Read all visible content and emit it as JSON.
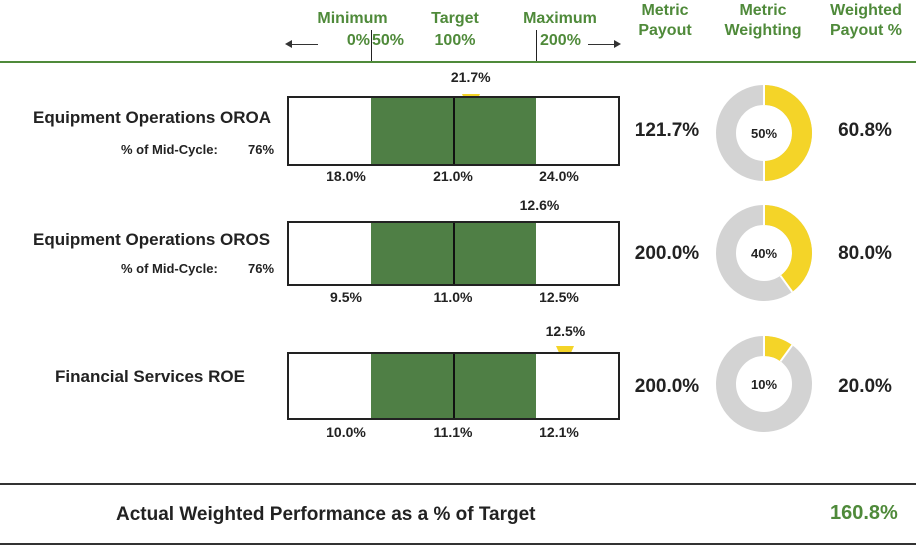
{
  "header": {
    "minimum": "Minimum",
    "min_pct": "0%",
    "fifty_pct": "50%",
    "target": "Target",
    "target_pct": "100%",
    "maximum": "Maximum",
    "max_pct": "200%",
    "metric_payout": [
      "Metric",
      "Payout"
    ],
    "metric_weighting": [
      "Metric",
      "Weighting"
    ],
    "weighted_payout": [
      "Weighted",
      "Payout %"
    ]
  },
  "colors": {
    "accent": "#4f8a3a",
    "band": "#4f7f45",
    "marker": "#f4d428",
    "donut_gray": "#d3d3d3"
  },
  "chart_data": {
    "type": "bar",
    "metrics": [
      {
        "name": "Equipment Operations OROA",
        "midcycle_label": "% of Mid-Cycle:",
        "midcycle_value": "76%",
        "scale": {
          "min": 18.0,
          "target": 21.0,
          "max": 24.0
        },
        "scale_labels": [
          "18.0%",
          "21.0%",
          "24.0%"
        ],
        "actual": 21.7,
        "actual_label": "21.7%",
        "metric_payout": "121.7%",
        "weighting": 50,
        "weighting_label": "50%",
        "weighted_payout": "60.8%"
      },
      {
        "name": "Equipment Operations OROS",
        "midcycle_label": "% of Mid-Cycle:",
        "midcycle_value": "76%",
        "scale": {
          "min": 9.5,
          "target": 11.0,
          "max": 12.5
        },
        "scale_labels": [
          "9.5%",
          "11.0%",
          "12.5%"
        ],
        "actual": 12.6,
        "actual_label": "12.6%",
        "metric_payout": "200.0%",
        "weighting": 40,
        "weighting_label": "40%",
        "weighted_payout": "80.0%"
      },
      {
        "name": "Financial Services ROE",
        "midcycle_label": "",
        "midcycle_value": "",
        "scale": {
          "min": 10.0,
          "target": 11.1,
          "max": 12.1
        },
        "scale_labels": [
          "10.0%",
          "11.1%",
          "12.1%"
        ],
        "actual": 12.5,
        "actual_label": "12.5%",
        "metric_payout": "200.0%",
        "weighting": 10,
        "weighting_label": "10%",
        "weighted_payout": "20.0%"
      }
    ]
  },
  "footer": {
    "label": "Actual Weighted Performance as a % of Target",
    "value": "160.8%"
  }
}
